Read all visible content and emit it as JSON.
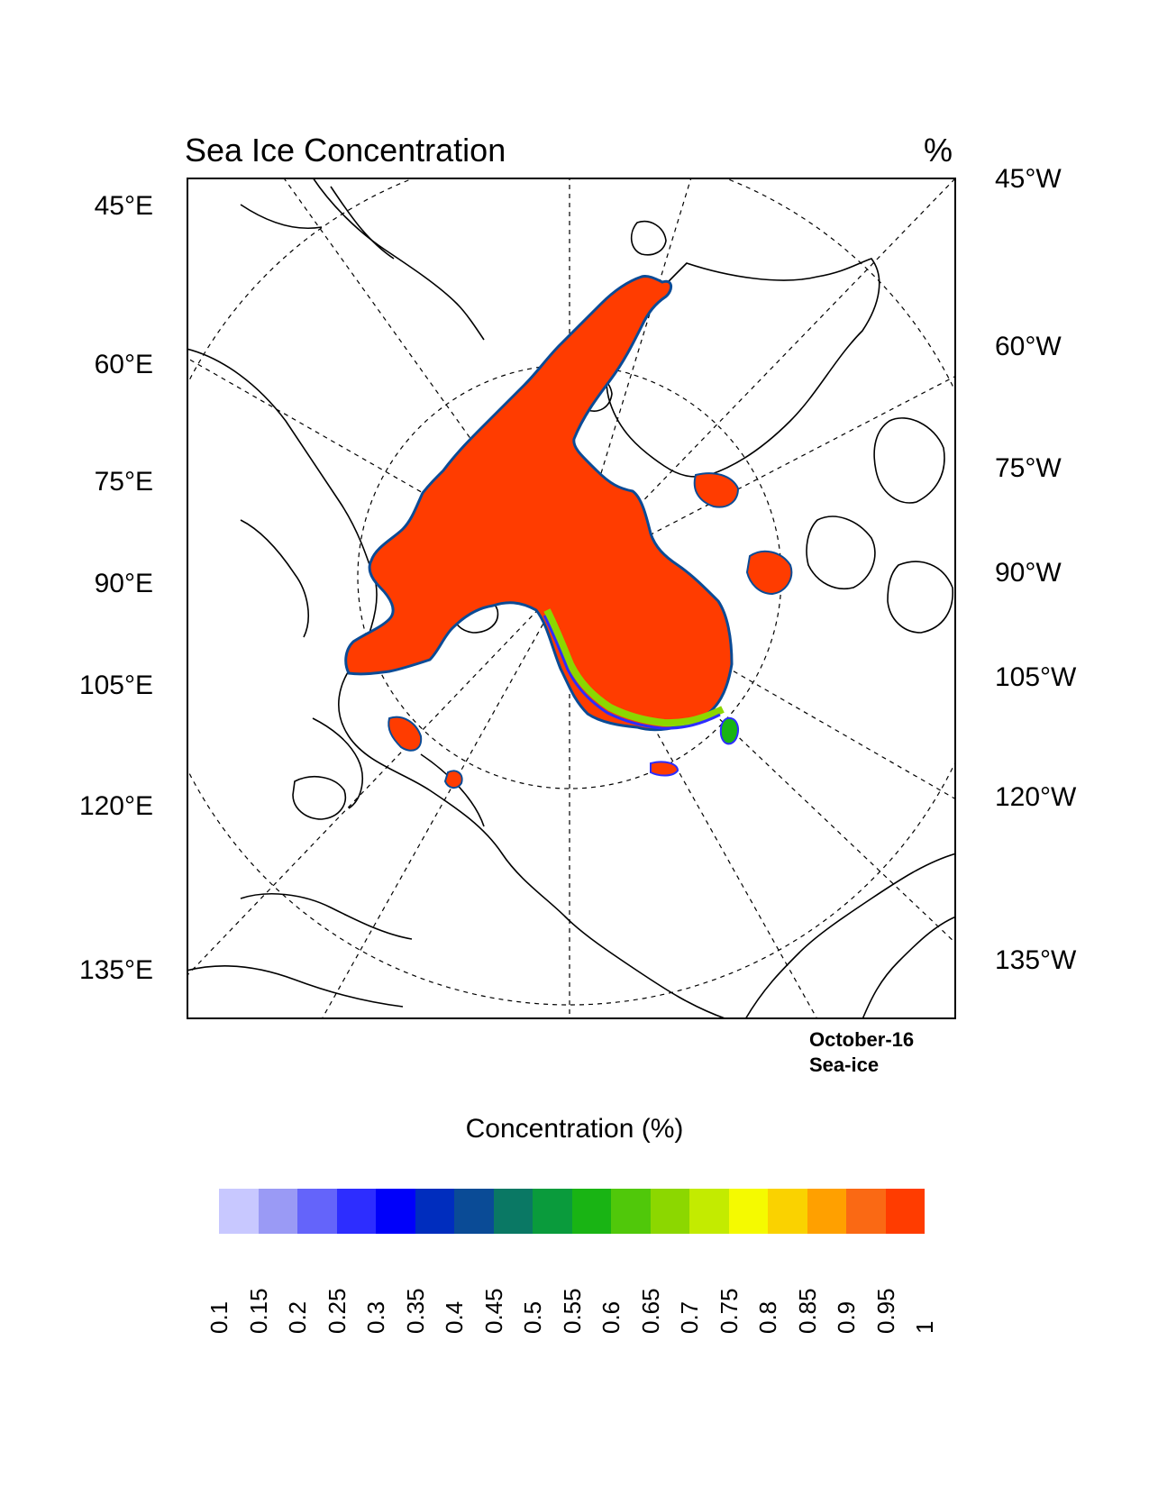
{
  "title": "Sea Ice Concentration",
  "units": "%",
  "left_labels": [
    "45°E",
    "60°E",
    "75°E",
    "90°E",
    "105°E",
    "120°E",
    "135°E"
  ],
  "right_labels": [
    "45°W",
    "60°W",
    "75°W",
    "90°W",
    "105°W",
    "120°W",
    "135°W"
  ],
  "info": {
    "date": "October-16",
    "field": "Sea-ice"
  },
  "colorbar": {
    "title": "Concentration (%)",
    "colors": [
      "#c8c8ff",
      "#9a9af5",
      "#6464fa",
      "#2d2dff",
      "#0000fa",
      "#002dbe",
      "#0a4b96",
      "#0a7864",
      "#0a9b3c",
      "#19b414",
      "#50c80a",
      "#8cd700",
      "#c3eb00",
      "#f5fa00",
      "#fad200",
      "#ffa000",
      "#fa6914",
      "#ff3c00"
    ],
    "ticks": [
      "0.1",
      "0.15",
      "0.2",
      "0.25",
      "0.3",
      "0.35",
      "0.4",
      "0.45",
      "0.5",
      "0.55",
      "0.6",
      "0.65",
      "0.7",
      "0.75",
      "0.8",
      "0.85",
      "0.9",
      "0.95",
      "1"
    ]
  },
  "colors": {
    "ice": "#ff3c00",
    "ice_edge": "#0a4b96",
    "coast": "#000000"
  }
}
